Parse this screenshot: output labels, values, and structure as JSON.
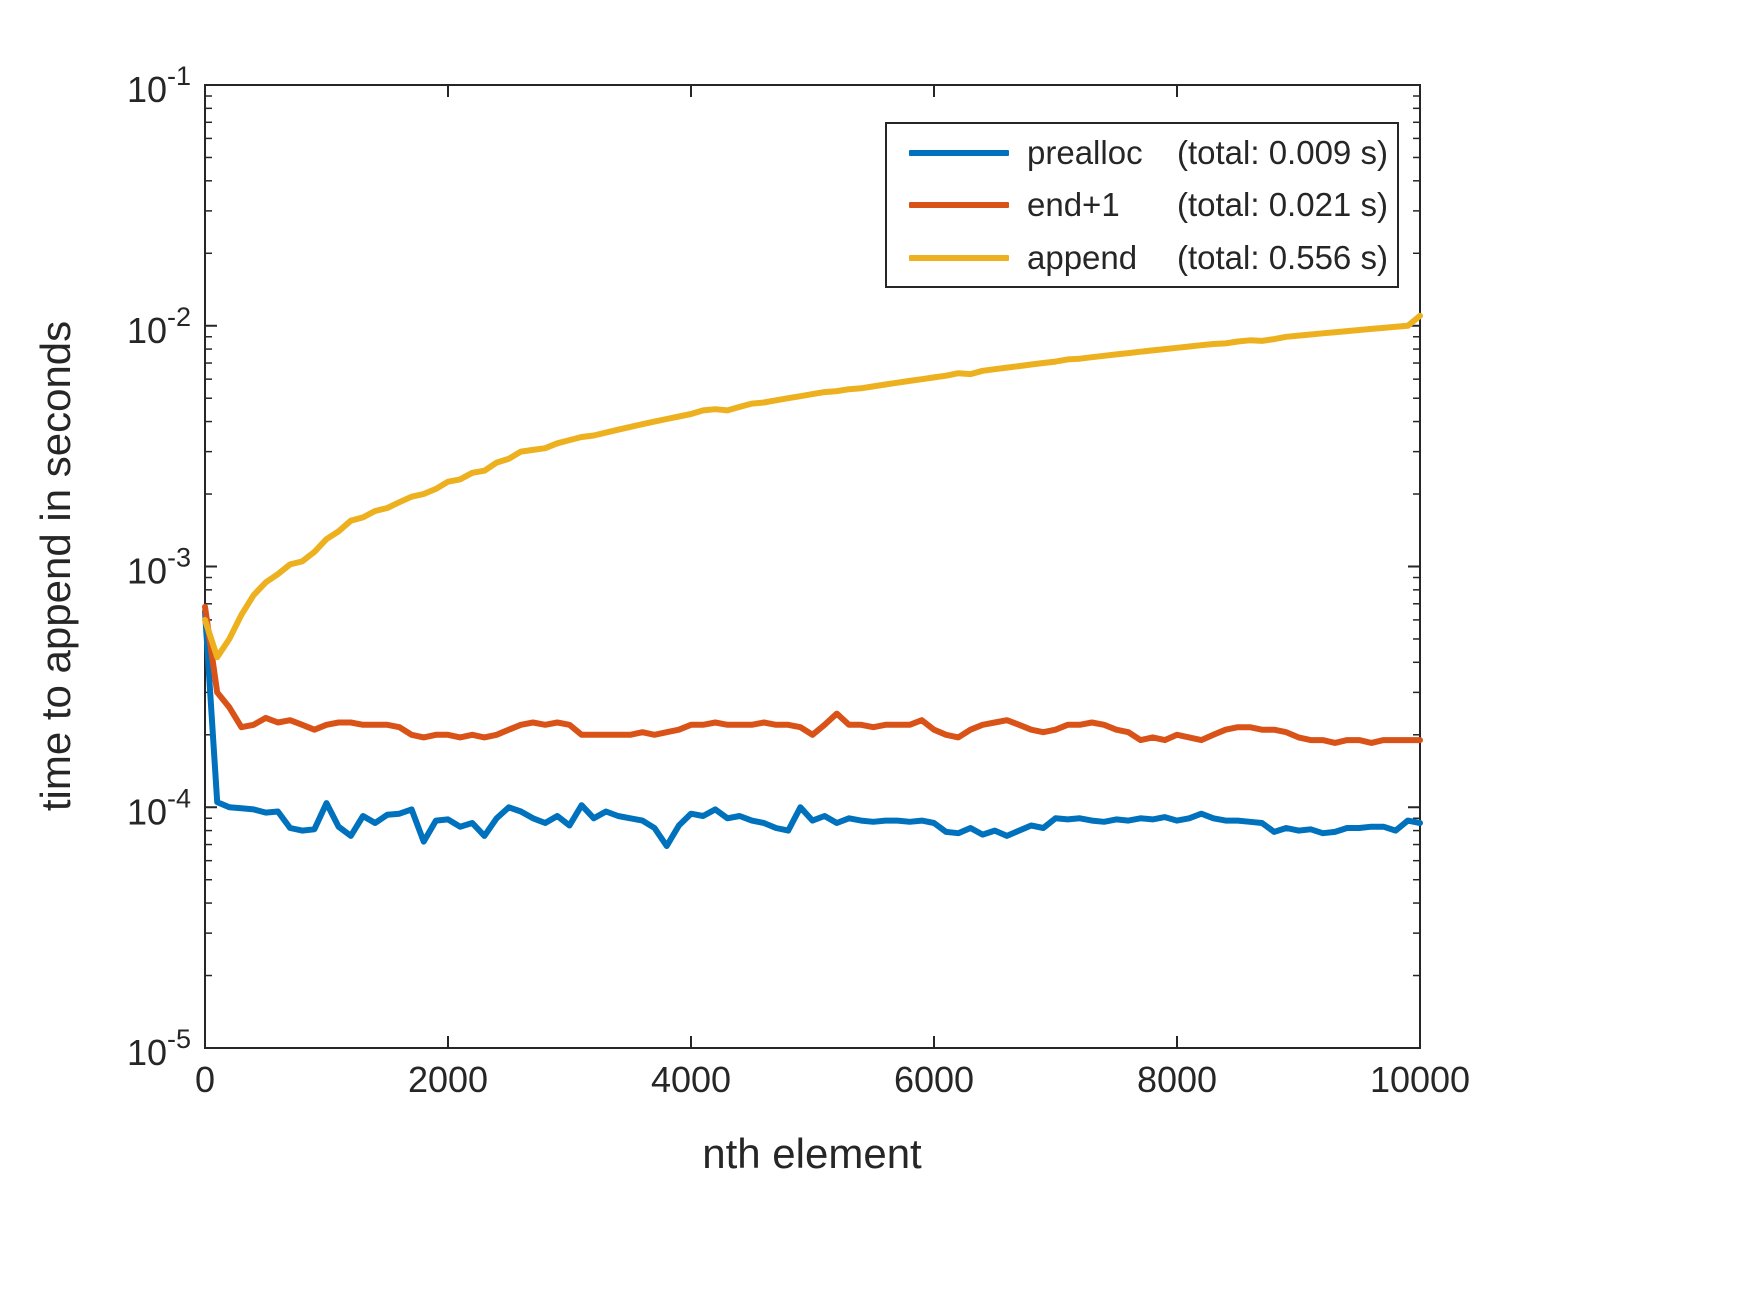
{
  "figure": {
    "background": "#ffffff",
    "axis_color": "#262626"
  },
  "chart_data": {
    "type": "line",
    "title": "",
    "xlabel": "nth element",
    "ylabel": "time to append in seconds",
    "x_ticks": [
      0,
      2000,
      4000,
      6000,
      8000,
      10000
    ],
    "y_scale": "log",
    "y_tick_exponents": [
      -5,
      -4,
      -3,
      -2,
      -1
    ],
    "xlim": [
      0,
      10000
    ],
    "ylim": [
      1e-05,
      0.1
    ],
    "grid": false,
    "legend_position": "top-right",
    "x": [
      0,
      100,
      200,
      300,
      400,
      500,
      600,
      700,
      800,
      900,
      1000,
      1100,
      1200,
      1300,
      1400,
      1500,
      1600,
      1700,
      1800,
      1900,
      2000,
      2100,
      2200,
      2300,
      2400,
      2500,
      2600,
      2700,
      2800,
      2900,
      3000,
      3100,
      3200,
      3300,
      3400,
      3500,
      3600,
      3700,
      3800,
      3900,
      4000,
      4100,
      4200,
      4300,
      4400,
      4500,
      4600,
      4700,
      4800,
      4900,
      5000,
      5100,
      5200,
      5300,
      5400,
      5500,
      5600,
      5700,
      5800,
      5900,
      6000,
      6100,
      6200,
      6300,
      6400,
      6500,
      6600,
      6700,
      6800,
      6900,
      7000,
      7100,
      7200,
      7300,
      7400,
      7500,
      7600,
      7700,
      7800,
      7900,
      8000,
      8100,
      8200,
      8300,
      8400,
      8500,
      8600,
      8700,
      8800,
      8900,
      9000,
      9100,
      9200,
      9300,
      9400,
      9500,
      9600,
      9700,
      9800,
      9900,
      10000
    ],
    "series": [
      {
        "name": "prealloc",
        "total_label": "(total: 0.009 s)",
        "color": "#0072BD",
        "values": [
          0.00065,
          0.000105,
          0.0001,
          9.9e-05,
          9.8e-05,
          9.5e-05,
          9.6e-05,
          8.2e-05,
          8e-05,
          8.1e-05,
          0.000104,
          8.3e-05,
          7.6e-05,
          9.2e-05,
          8.6e-05,
          9.3e-05,
          9.4e-05,
          9.8e-05,
          7.2e-05,
          8.8e-05,
          8.9e-05,
          8.3e-05,
          8.6e-05,
          7.6e-05,
          9e-05,
          0.0001,
          9.6e-05,
          9e-05,
          8.6e-05,
          9.2e-05,
          8.4e-05,
          0.000102,
          9e-05,
          9.6e-05,
          9.2e-05,
          9e-05,
          8.8e-05,
          8.2e-05,
          6.9e-05,
          8.4e-05,
          9.4e-05,
          9.2e-05,
          9.8e-05,
          9e-05,
          9.2e-05,
          8.8e-05,
          8.6e-05,
          8.2e-05,
          8e-05,
          0.0001,
          8.8e-05,
          9.2e-05,
          8.6e-05,
          9e-05,
          8.8e-05,
          8.7e-05,
          8.8e-05,
          8.8e-05,
          8.7e-05,
          8.8e-05,
          8.6e-05,
          7.9e-05,
          7.8e-05,
          8.2e-05,
          7.7e-05,
          8e-05,
          7.6e-05,
          8e-05,
          8.4e-05,
          8.2e-05,
          9e-05,
          8.9e-05,
          9e-05,
          8.8e-05,
          8.7e-05,
          8.9e-05,
          8.8e-05,
          9e-05,
          8.9e-05,
          9.1e-05,
          8.8e-05,
          9e-05,
          9.4e-05,
          9e-05,
          8.8e-05,
          8.8e-05,
          8.7e-05,
          8.6e-05,
          7.9e-05,
          8.2e-05,
          8e-05,
          8.1e-05,
          7.8e-05,
          7.9e-05,
          8.2e-05,
          8.2e-05,
          8.3e-05,
          8.3e-05,
          8e-05,
          8.8e-05,
          8.6e-05
        ]
      },
      {
        "name": "end+1",
        "total_label": "(total: 0.021 s)",
        "color": "#D95319",
        "values": [
          0.00068,
          0.0003,
          0.00026,
          0.000215,
          0.00022,
          0.000235,
          0.000225,
          0.00023,
          0.00022,
          0.00021,
          0.00022,
          0.000225,
          0.000225,
          0.00022,
          0.00022,
          0.00022,
          0.000215,
          0.0002,
          0.000195,
          0.0002,
          0.0002,
          0.000195,
          0.0002,
          0.000195,
          0.0002,
          0.00021,
          0.00022,
          0.000225,
          0.00022,
          0.000225,
          0.00022,
          0.0002,
          0.0002,
          0.0002,
          0.0002,
          0.0002,
          0.000205,
          0.0002,
          0.000205,
          0.00021,
          0.00022,
          0.00022,
          0.000225,
          0.00022,
          0.00022,
          0.00022,
          0.000225,
          0.00022,
          0.00022,
          0.000215,
          0.0002,
          0.00022,
          0.000245,
          0.00022,
          0.00022,
          0.000215,
          0.00022,
          0.00022,
          0.00022,
          0.00023,
          0.00021,
          0.0002,
          0.000195,
          0.00021,
          0.00022,
          0.000225,
          0.00023,
          0.00022,
          0.00021,
          0.000205,
          0.00021,
          0.00022,
          0.00022,
          0.000225,
          0.00022,
          0.00021,
          0.000205,
          0.00019,
          0.000195,
          0.00019,
          0.0002,
          0.000195,
          0.00019,
          0.0002,
          0.00021,
          0.000215,
          0.000215,
          0.00021,
          0.00021,
          0.000205,
          0.000195,
          0.00019,
          0.00019,
          0.000185,
          0.00019,
          0.00019,
          0.000185,
          0.00019,
          0.00019,
          0.00019,
          0.00019
        ]
      },
      {
        "name": "append",
        "total_label": "(total: 0.556 s)",
        "color": "#EDB120",
        "values": [
          0.0006,
          0.00042,
          0.0005,
          0.00063,
          0.00076,
          0.00086,
          0.00093,
          0.00102,
          0.00105,
          0.00115,
          0.0013,
          0.0014,
          0.00155,
          0.0016,
          0.0017,
          0.00175,
          0.00185,
          0.00195,
          0.002,
          0.0021,
          0.00225,
          0.0023,
          0.00245,
          0.0025,
          0.0027,
          0.0028,
          0.003,
          0.00305,
          0.0031,
          0.00325,
          0.00335,
          0.00345,
          0.0035,
          0.0036,
          0.0037,
          0.0038,
          0.0039,
          0.004,
          0.0041,
          0.0042,
          0.0043,
          0.00445,
          0.0045,
          0.00445,
          0.0046,
          0.00475,
          0.0048,
          0.0049,
          0.005,
          0.0051,
          0.0052,
          0.0053,
          0.00535,
          0.00545,
          0.0055,
          0.0056,
          0.0057,
          0.0058,
          0.0059,
          0.006,
          0.0061,
          0.0062,
          0.00635,
          0.0063,
          0.0065,
          0.0066,
          0.0067,
          0.0068,
          0.0069,
          0.007,
          0.0071,
          0.00725,
          0.0073,
          0.0074,
          0.0075,
          0.0076,
          0.0077,
          0.0078,
          0.0079,
          0.008,
          0.0081,
          0.0082,
          0.0083,
          0.0084,
          0.00845,
          0.0086,
          0.0087,
          0.00865,
          0.0088,
          0.009,
          0.0091,
          0.0092,
          0.0093,
          0.0094,
          0.0095,
          0.0096,
          0.0097,
          0.0098,
          0.0099,
          0.01,
          0.011
        ]
      }
    ]
  }
}
